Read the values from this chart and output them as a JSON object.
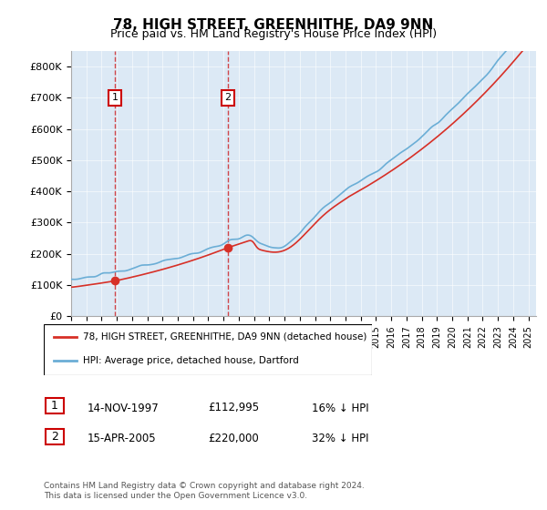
{
  "title": "78, HIGH STREET, GREENHITHE, DA9 9NN",
  "subtitle": "Price paid vs. HM Land Registry's House Price Index (HPI)",
  "legend_line1": "78, HIGH STREET, GREENHITHE, DA9 9NN (detached house)",
  "legend_line2": "HPI: Average price, detached house, Dartford",
  "sale1_label": "1",
  "sale1_date": "14-NOV-1997",
  "sale1_price": "£112,995",
  "sale1_hpi": "16% ↓ HPI",
  "sale1_year": 1997.87,
  "sale1_value": 112995,
  "sale2_label": "2",
  "sale2_date": "15-APR-2005",
  "sale2_price": "£220,000",
  "sale2_hpi": "32% ↓ HPI",
  "sale2_year": 2005.29,
  "sale2_value": 220000,
  "hpi_color": "#6baed6",
  "price_color": "#d73027",
  "footnote": "Contains HM Land Registry data © Crown copyright and database right 2024.\nThis data is licensed under the Open Government Licence v3.0.",
  "ylim_min": 0,
  "ylim_max": 850000,
  "bg_color": "#dce9f5"
}
